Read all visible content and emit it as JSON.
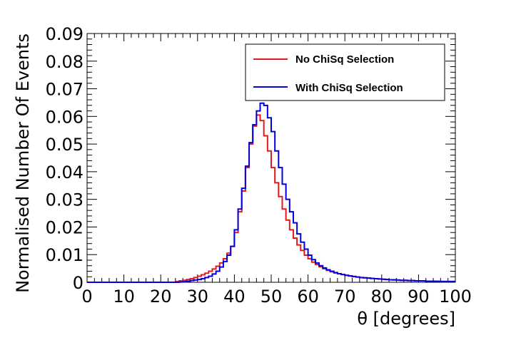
{
  "chart_data": {
    "type": "line",
    "xlabel": "θ [degrees]",
    "ylabel": "Normalised Number Of Events",
    "xlim": [
      0,
      100
    ],
    "ylim": [
      0,
      0.09
    ],
    "xticks": [
      "0",
      "10",
      "20",
      "30",
      "40",
      "50",
      "60",
      "70",
      "80",
      "90",
      "100"
    ],
    "yticks": [
      "0",
      "0.01",
      "0.02",
      "0.03",
      "0.04",
      "0.05",
      "0.06",
      "0.07",
      "0.08",
      "0.09"
    ],
    "bin_width": 1,
    "legend_position": "top-right",
    "grid": false,
    "series": [
      {
        "name": "No ChiSq Selection",
        "color": "#e31a1c",
        "values": [
          0,
          0,
          0,
          0,
          0,
          0,
          0,
          0,
          0,
          0,
          0,
          0,
          0,
          0,
          0,
          0,
          0,
          0,
          0,
          0,
          0,
          0,
          0,
          0,
          0.0003,
          0.0005,
          0.0007,
          0.001,
          0.0013,
          0.0017,
          0.0022,
          0.0027,
          0.0033,
          0.004,
          0.0048,
          0.0058,
          0.007,
          0.0085,
          0.0105,
          0.013,
          0.018,
          0.0255,
          0.033,
          0.0415,
          0.05,
          0.0565,
          0.0605,
          0.0585,
          0.053,
          0.0475,
          0.0415,
          0.036,
          0.031,
          0.0265,
          0.0225,
          0.019,
          0.016,
          0.0135,
          0.0115,
          0.0098,
          0.0085,
          0.0073,
          0.0064,
          0.0056,
          0.0049,
          0.0043,
          0.0038,
          0.0034,
          0.0031,
          0.0028,
          0.0025,
          0.0023,
          0.0021,
          0.0019,
          0.0017,
          0.0016,
          0.0015,
          0.0014,
          0.0013,
          0.0012,
          0.0011,
          0.001,
          0.0009,
          0.0008,
          0.0008,
          0.0007,
          0.0007,
          0.0006,
          0.0006,
          0.0005,
          0.0005,
          0.0005,
          0.0004,
          0.0004,
          0.0004,
          0.0004,
          0.0003,
          0.0003,
          0.0003,
          0.0003
        ]
      },
      {
        "name": "With ChiSq Selection",
        "color": "#0000e0",
        "values": [
          0,
          0,
          0,
          0,
          0,
          0,
          0,
          0,
          0,
          0,
          0,
          0,
          0,
          0,
          0,
          0,
          0,
          0,
          0,
          0,
          0,
          0,
          0,
          0,
          0,
          0.0001,
          0.0002,
          0.0004,
          0.0006,
          0.0008,
          0.001,
          0.0013,
          0.0017,
          0.0022,
          0.003,
          0.004,
          0.0055,
          0.0075,
          0.0098,
          0.013,
          0.019,
          0.0265,
          0.034,
          0.042,
          0.0505,
          0.057,
          0.062,
          0.0648,
          0.064,
          0.0595,
          0.0545,
          0.0475,
          0.0415,
          0.0355,
          0.03,
          0.0255,
          0.0215,
          0.0175,
          0.0145,
          0.012,
          0.0098,
          0.0082,
          0.007,
          0.006,
          0.0052,
          0.0045,
          0.004,
          0.0035,
          0.0031,
          0.0028,
          0.0025,
          0.0023,
          0.0021,
          0.0019,
          0.0017,
          0.0016,
          0.0015,
          0.0014,
          0.0013,
          0.0012,
          0.0011,
          0.001,
          0.0009,
          0.0009,
          0.0008,
          0.0007,
          0.0007,
          0.0006,
          0.0006,
          0.0005,
          0.0005,
          0.0005,
          0.0004,
          0.0004,
          0.0004,
          0.0003,
          0.0003,
          0.0003,
          0.0003,
          0.0003
        ]
      }
    ]
  }
}
